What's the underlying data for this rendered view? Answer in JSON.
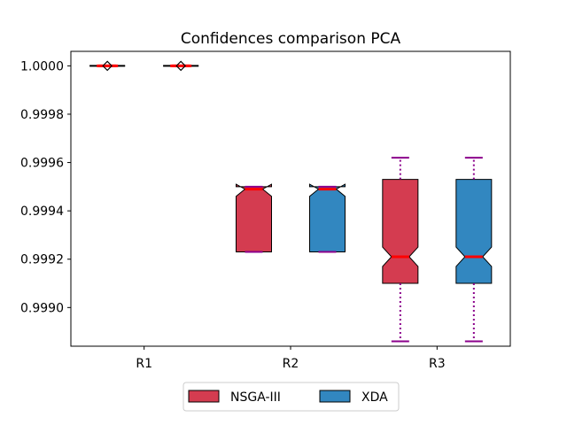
{
  "chart_data": {
    "type": "box",
    "title": "Confidences comparison PCA",
    "xlabel": "",
    "ylabel": "",
    "categories": [
      "R1",
      "R2",
      "R3"
    ],
    "ylim": [
      0.99884,
      1.00006
    ],
    "yticks": [
      "0.9990",
      "0.9992",
      "0.9994",
      "0.9996",
      "0.9998",
      "1.0000"
    ],
    "ytick_values": [
      0.999,
      0.9992,
      0.9994,
      0.9996,
      0.9998,
      1.0
    ],
    "notched": true,
    "legend_position": "below",
    "colors": {
      "NSGA-III": "#d43c50",
      "XDA": "#3287c0",
      "median": "#ff0000",
      "whisker": "#8b008b"
    },
    "series": [
      {
        "name": "NSGA-III",
        "boxes": [
          {
            "category": "R1",
            "whislo": 1.0,
            "q1": 1.0,
            "med": 1.0,
            "q3": 1.0,
            "whishi": 1.0,
            "notch_lo": 1.0,
            "notch_hi": 1.0
          },
          {
            "category": "R2",
            "whislo": 0.99923,
            "q1": 0.99923,
            "med": 0.99949,
            "q3": 0.9995,
            "whishi": 0.9995,
            "notch_lo": 0.99946,
            "notch_hi": 0.99951
          },
          {
            "category": "R3",
            "whislo": 0.99886,
            "q1": 0.9991,
            "med": 0.99921,
            "q3": 0.99953,
            "whishi": 0.99962,
            "notch_lo": 0.99917,
            "notch_hi": 0.99925
          }
        ]
      },
      {
        "name": "XDA",
        "boxes": [
          {
            "category": "R1",
            "whislo": 1.0,
            "q1": 1.0,
            "med": 1.0,
            "q3": 1.0,
            "whishi": 1.0,
            "notch_lo": 1.0,
            "notch_hi": 1.0
          },
          {
            "category": "R2",
            "whislo": 0.99923,
            "q1": 0.99923,
            "med": 0.99949,
            "q3": 0.9995,
            "whishi": 0.9995,
            "notch_lo": 0.99946,
            "notch_hi": 0.99951
          },
          {
            "category": "R3",
            "whislo": 0.99886,
            "q1": 0.9991,
            "med": 0.99921,
            "q3": 0.99953,
            "whishi": 0.99962,
            "notch_lo": 0.99917,
            "notch_hi": 0.99925
          }
        ]
      }
    ]
  }
}
